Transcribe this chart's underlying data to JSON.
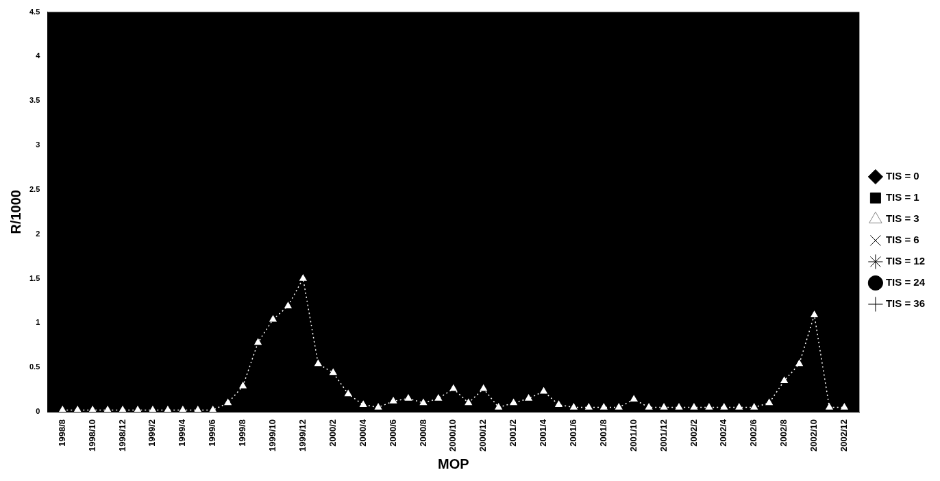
{
  "chart_data": {
    "type": "line",
    "xlabel": "MOP",
    "ylabel": "R/1000",
    "categories": [
      null,
      "1998/8",
      null,
      "1998/10",
      null,
      "1998/12",
      null,
      "1999/2",
      null,
      "1999/4",
      null,
      "1999/6",
      null,
      "1999/8",
      null,
      "1999/10",
      null,
      "1999/12",
      null,
      "2000/2",
      null,
      "2000/4",
      null,
      "2000/6",
      null,
      "2000/8",
      null,
      "2000/10",
      null,
      "2000/12",
      null,
      "2001/2",
      null,
      "2001/4",
      null,
      "2001/6",
      null,
      "2001/8",
      null,
      "2001/10",
      null,
      "2001/12",
      null,
      "2002/2",
      null,
      "2002/4",
      null,
      "2002/6",
      null,
      "2002/8",
      null,
      "2002/10",
      null,
      "2002/12",
      null
    ],
    "series": [
      {
        "name": "TIS = 0",
        "color": "#000000",
        "marker": "diamond",
        "values": [
          null,
          null,
          null,
          null,
          null,
          null,
          null,
          null,
          null,
          null,
          null,
          null,
          null,
          null,
          null,
          null,
          null,
          null,
          null,
          null,
          null,
          null,
          null,
          null,
          null,
          null,
          null,
          null,
          null,
          null,
          null,
          null,
          null,
          null,
          null,
          null,
          null,
          null,
          null,
          null,
          null,
          null,
          null,
          null,
          null,
          null,
          null,
          null,
          null,
          null,
          null,
          null,
          null,
          null,
          null
        ]
      },
      {
        "name": "TIS = 1",
        "color": "#000000",
        "marker": "square",
        "values": [
          null,
          null,
          null,
          null,
          null,
          null,
          null,
          null,
          null,
          null,
          null,
          null,
          null,
          null,
          null,
          null,
          null,
          null,
          null,
          null,
          null,
          null,
          null,
          null,
          null,
          null,
          null,
          null,
          null,
          null,
          null,
          null,
          null,
          null,
          null,
          null,
          null,
          null,
          null,
          null,
          null,
          null,
          null,
          null,
          null,
          null,
          null,
          null,
          null,
          null,
          null,
          null,
          null,
          null,
          null
        ]
      },
      {
        "name": "TIS = 3",
        "color": "#ffffff",
        "marker": "triangle",
        "line_style": "dotted",
        "values": [
          null,
          0.02,
          0.02,
          0.02,
          0.02,
          0.02,
          0.02,
          0.02,
          0.02,
          0.02,
          0.02,
          0.02,
          0.1,
          0.29,
          0.78,
          1.04,
          1.19,
          1.5,
          0.54,
          0.44,
          0.2,
          0.08,
          0.05,
          0.12,
          0.15,
          0.1,
          0.15,
          0.26,
          0.1,
          0.26,
          0.05,
          0.1,
          0.15,
          0.23,
          0.08,
          0.05,
          0.05,
          0.05,
          0.05,
          0.14,
          0.05,
          0.05,
          0.05,
          0.05,
          0.05,
          0.05,
          0.05,
          0.05,
          0.1,
          0.35,
          0.54,
          1.09,
          0.05,
          0.05,
          null
        ]
      },
      {
        "name": "TIS = 6",
        "color": "#000000",
        "marker": "cross",
        "values": [
          null,
          null,
          null,
          null,
          null,
          null,
          null,
          null,
          null,
          null,
          null,
          null,
          null,
          null,
          null,
          null,
          null,
          null,
          null,
          null,
          null,
          null,
          null,
          null,
          null,
          null,
          null,
          null,
          null,
          null,
          null,
          null,
          null,
          null,
          null,
          null,
          null,
          null,
          null,
          null,
          null,
          null,
          null,
          null,
          null,
          null,
          null,
          null,
          null,
          null,
          null,
          null,
          null,
          null,
          null
        ]
      },
      {
        "name": "TIS = 12",
        "color": "#000000",
        "marker": "star",
        "values": [
          null,
          null,
          null,
          null,
          null,
          null,
          null,
          null,
          null,
          null,
          null,
          null,
          null,
          null,
          null,
          null,
          null,
          null,
          null,
          null,
          null,
          null,
          null,
          null,
          null,
          null,
          null,
          null,
          null,
          null,
          null,
          null,
          null,
          null,
          null,
          null,
          null,
          null,
          null,
          null,
          null,
          null,
          null,
          null,
          null,
          null,
          null,
          null,
          null,
          null,
          null,
          null,
          null,
          null,
          null
        ]
      },
      {
        "name": "TIS = 24",
        "color": "#000000",
        "marker": "circle",
        "values": [
          null,
          null,
          null,
          null,
          null,
          null,
          null,
          null,
          null,
          null,
          null,
          null,
          null,
          null,
          null,
          null,
          null,
          null,
          null,
          null,
          null,
          null,
          null,
          null,
          null,
          null,
          null,
          null,
          null,
          null,
          null,
          null,
          null,
          null,
          null,
          null,
          null,
          null,
          null,
          null,
          null,
          null,
          null,
          null,
          null,
          null,
          null,
          null,
          null,
          null,
          null,
          null,
          null,
          null,
          null
        ]
      },
      {
        "name": "TIS = 36",
        "color": "#000000",
        "marker": "plus",
        "values": [
          null,
          null,
          null,
          null,
          null,
          null,
          null,
          null,
          null,
          null,
          null,
          null,
          null,
          null,
          null,
          null,
          null,
          null,
          null,
          null,
          null,
          null,
          null,
          null,
          null,
          null,
          null,
          null,
          null,
          null,
          null,
          null,
          null,
          null,
          null,
          null,
          null,
          null,
          null,
          null,
          null,
          null,
          null,
          null,
          null,
          null,
          null,
          null,
          null,
          null,
          null,
          null,
          null,
          null,
          null
        ]
      }
    ],
    "ylim": [
      0,
      4.5
    ],
    "yticks": [
      0,
      0.5,
      1,
      1.5,
      2,
      2.5,
      3,
      3.5,
      4,
      4.5
    ],
    "grid": false,
    "legend": "right"
  }
}
